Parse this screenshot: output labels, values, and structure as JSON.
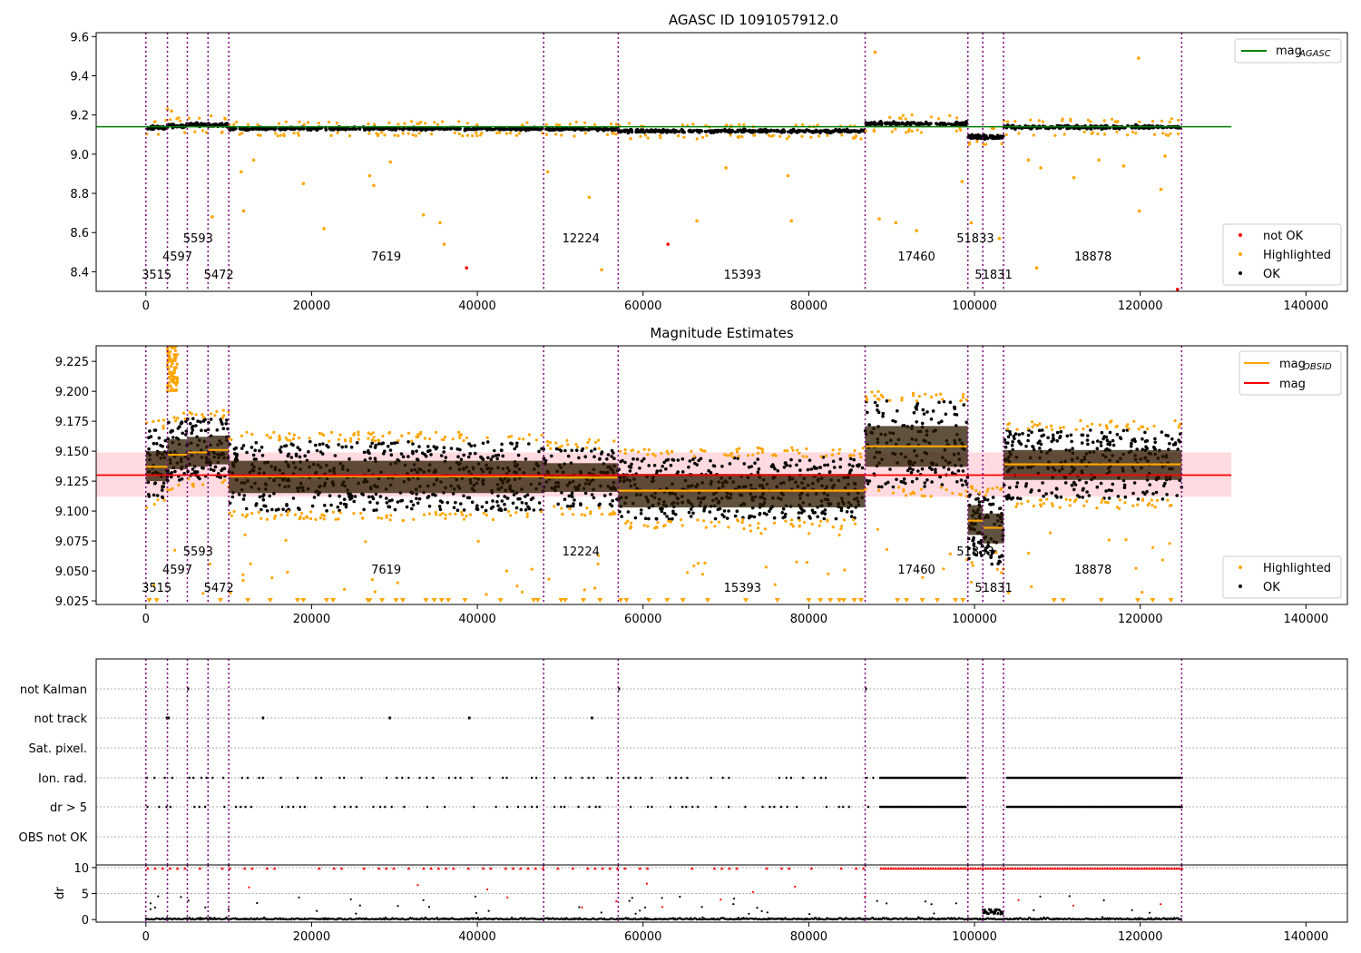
{
  "chart_data": [
    {
      "type": "scatter",
      "title": "AGASC ID 1091057912.0",
      "xlim": [
        -6000,
        145000
      ],
      "ylim": [
        8.3,
        9.62
      ],
      "xticks": [
        0,
        20000,
        40000,
        60000,
        80000,
        100000,
        120000,
        140000
      ],
      "yticks": [
        8.4,
        8.6,
        8.8,
        9.0,
        9.2,
        9.4,
        9.6
      ],
      "ytick_labels": [
        "8.4",
        "8.6",
        "8.8",
        "9.0",
        "9.2",
        "9.4",
        "9.6"
      ],
      "mag_agasc": 9.14,
      "mag_agasc_range": [
        -6000,
        131000
      ],
      "legend_top": {
        "label": "mag",
        "sub": "AGASC",
        "color": "#008000"
      },
      "legend_bottom": [
        {
          "label": "not OK",
          "color": "#ff0000"
        },
        {
          "label": "Highlighted",
          "color": "#ffa500"
        },
        {
          "label": "OK",
          "color": "#000000"
        }
      ],
      "segments": [
        {
          "x0": 0,
          "x1": 2600,
          "mean": 9.135,
          "spread": 0.015
        },
        {
          "x0": 2600,
          "x1": 5000,
          "mean": 9.145,
          "spread": 0.015
        },
        {
          "x0": 5000,
          "x1": 7500,
          "mean": 9.15,
          "spread": 0.015
        },
        {
          "x0": 7500,
          "x1": 10000,
          "mean": 9.15,
          "spread": 0.015
        },
        {
          "x0": 10000,
          "x1": 48000,
          "mean": 9.13,
          "spread": 0.012
        },
        {
          "x0": 48000,
          "x1": 57000,
          "mean": 9.128,
          "spread": 0.012
        },
        {
          "x0": 57000,
          "x1": 86800,
          "mean": 9.118,
          "spread": 0.013
        },
        {
          "x0": 86800,
          "x1": 99200,
          "mean": 9.155,
          "spread": 0.015
        },
        {
          "x0": 99200,
          "x1": 101000,
          "mean": 9.09,
          "spread": 0.015
        },
        {
          "x0": 101000,
          "x1": 103500,
          "mean": 9.086,
          "spread": 0.015
        },
        {
          "x0": 103500,
          "x1": 125000,
          "mean": 9.138,
          "spread": 0.014
        }
      ],
      "outliers_not_ok": [
        {
          "x": 38700,
          "y": 8.42
        },
        {
          "x": 63000,
          "y": 8.54
        },
        {
          "x": 124500,
          "y": 8.31
        }
      ],
      "outliers_highlighted": [
        {
          "x": 2600,
          "y": 9.23
        },
        {
          "x": 3100,
          "y": 9.22
        },
        {
          "x": 8000,
          "y": 8.68
        },
        {
          "x": 11500,
          "y": 8.91
        },
        {
          "x": 11800,
          "y": 8.71
        },
        {
          "x": 13000,
          "y": 8.97
        },
        {
          "x": 19000,
          "y": 8.85
        },
        {
          "x": 21500,
          "y": 8.62
        },
        {
          "x": 27000,
          "y": 8.89
        },
        {
          "x": 27500,
          "y": 8.84
        },
        {
          "x": 29500,
          "y": 8.96
        },
        {
          "x": 33500,
          "y": 8.69
        },
        {
          "x": 35500,
          "y": 8.65
        },
        {
          "x": 36000,
          "y": 8.54
        },
        {
          "x": 48500,
          "y": 8.91
        },
        {
          "x": 53500,
          "y": 8.78
        },
        {
          "x": 55000,
          "y": 8.41
        },
        {
          "x": 66500,
          "y": 8.66
        },
        {
          "x": 70000,
          "y": 8.93
        },
        {
          "x": 77500,
          "y": 8.89
        },
        {
          "x": 77900,
          "y": 8.66
        },
        {
          "x": 88000,
          "y": 9.52
        },
        {
          "x": 88500,
          "y": 8.67
        },
        {
          "x": 90500,
          "y": 8.65
        },
        {
          "x": 93000,
          "y": 8.61
        },
        {
          "x": 98500,
          "y": 8.86
        },
        {
          "x": 99600,
          "y": 8.65
        },
        {
          "x": 103000,
          "y": 8.57
        },
        {
          "x": 106500,
          "y": 8.97
        },
        {
          "x": 107500,
          "y": 8.42
        },
        {
          "x": 108000,
          "y": 8.93
        },
        {
          "x": 112000,
          "y": 8.88
        },
        {
          "x": 115000,
          "y": 8.97
        },
        {
          "x": 118000,
          "y": 8.94
        },
        {
          "x": 119800,
          "y": 9.49
        },
        {
          "x": 119900,
          "y": 8.71
        },
        {
          "x": 122500,
          "y": 8.82
        },
        {
          "x": 123000,
          "y": 8.99
        }
      ]
    },
    {
      "type": "scatter",
      "title": "Magnitude Estimates",
      "xlim": [
        -6000,
        145000
      ],
      "ylim": [
        9.022,
        9.238
      ],
      "xticks": [
        0,
        20000,
        40000,
        60000,
        80000,
        100000,
        120000,
        140000
      ],
      "yticks": [
        9.025,
        9.05,
        9.075,
        9.1,
        9.125,
        9.15,
        9.175,
        9.2,
        9.225
      ],
      "ytick_labels": [
        "9.025",
        "9.050",
        "9.075",
        "9.100",
        "9.125",
        "9.150",
        "9.175",
        "9.200",
        "9.225"
      ],
      "mag": 9.13,
      "mag_band": [
        9.112,
        9.149
      ],
      "mag_range": [
        -6000,
        131000
      ],
      "legend_top": [
        {
          "label": "mag",
          "sub": "OBSID",
          "color": "#ffa500"
        },
        {
          "label": "mag",
          "sub": "",
          "color": "#ff0000"
        }
      ],
      "legend_bottom": [
        {
          "label": "Highlighted",
          "color": "#ffa500"
        },
        {
          "label": "OK",
          "color": "#000000"
        }
      ],
      "obsid_segments": [
        {
          "x0": 0,
          "x1": 2600,
          "mag": 9.137,
          "lo": 9.125,
          "hi": 9.15,
          "plo": 9.11,
          "phi": 9.168
        },
        {
          "x0": 2600,
          "x1": 5000,
          "mag": 9.147,
          "lo": 9.135,
          "hi": 9.16,
          "plo": 9.125,
          "phi": 9.175
        },
        {
          "x0": 5000,
          "x1": 7500,
          "mag": 9.149,
          "lo": 9.137,
          "hi": 9.162,
          "plo": 9.127,
          "phi": 9.178
        },
        {
          "x0": 7500,
          "x1": 10000,
          "mag": 9.151,
          "lo": 9.139,
          "hi": 9.163,
          "plo": 9.128,
          "phi": 9.177
        },
        {
          "x0": 10000,
          "x1": 48000,
          "mag": 9.129,
          "lo": 9.115,
          "hi": 9.142,
          "plo": 9.1,
          "phi": 9.158
        },
        {
          "x0": 48000,
          "x1": 57000,
          "mag": 9.128,
          "lo": 9.116,
          "hi": 9.14,
          "plo": 9.104,
          "phi": 9.152
        },
        {
          "x0": 57000,
          "x1": 86800,
          "mag": 9.117,
          "lo": 9.103,
          "hi": 9.131,
          "plo": 9.093,
          "phi": 9.145
        },
        {
          "x0": 86800,
          "x1": 99200,
          "mag": 9.154,
          "lo": 9.137,
          "hi": 9.171,
          "plo": 9.12,
          "phi": 9.192
        },
        {
          "x0": 99200,
          "x1": 101000,
          "mag": 9.092,
          "lo": 9.08,
          "hi": 9.105,
          "plo": 9.06,
          "phi": 9.115
        },
        {
          "x0": 101000,
          "x1": 103500,
          "mag": 9.086,
          "lo": 9.073,
          "hi": 9.098,
          "plo": 9.055,
          "phi": 9.112
        },
        {
          "x0": 103500,
          "x1": 125000,
          "mag": 9.139,
          "lo": 9.126,
          "hi": 9.151,
          "plo": 9.11,
          "phi": 9.168
        }
      ],
      "highlighted_cluster": {
        "x0": 2500,
        "x1": 3800,
        "y0": 9.2,
        "y1": 9.238
      },
      "lower_clip_markers": [
        400,
        1300,
        9000,
        12300,
        15000,
        18300,
        19000,
        21800,
        22600,
        26800,
        27000,
        28500,
        30200,
        31000,
        33800,
        34800,
        35700,
        36500,
        38500,
        42800,
        46800,
        47300,
        50100,
        50600,
        52800,
        54800,
        57300,
        58000,
        60700,
        62900,
        64800,
        67800,
        72400,
        76200,
        80000,
        81400,
        82600,
        83700,
        84200,
        85500,
        86300,
        90700,
        91800,
        93700,
        95500,
        97700,
        98600,
        109600,
        110700,
        115300,
        119700,
        121500,
        123700
      ]
    },
    {
      "type": "scatter",
      "xlim": [
        -6000,
        145000
      ],
      "xticks": [
        0,
        20000,
        40000,
        60000,
        80000,
        100000,
        120000,
        140000
      ],
      "flag_rows": [
        "not Kalman",
        "not track",
        "Sat. pixel.",
        "Ion. rad.",
        "dr > 5",
        "OBS not OK"
      ],
      "dr_ylim": [
        -0.5,
        10.5
      ],
      "dr_yticks": [
        0,
        5,
        10
      ],
      "ylabel": "dr",
      "dr_clip": 9.8,
      "not_track_points": [
        2400,
        2600,
        14000,
        29300,
        38900,
        53700
      ],
      "not_kalman_points": [
        5000,
        57000,
        86800
      ],
      "flag_dense_ranges": [
        [
          88500,
          99000
        ],
        [
          103800,
          125000
        ]
      ],
      "flag_sparse_range": [
        0,
        88000
      ]
    }
  ],
  "obsid_labels": [
    {
      "text": "3515",
      "x": 1300,
      "row": 0
    },
    {
      "text": "4597",
      "x": 3800,
      "row": 1
    },
    {
      "text": "5593",
      "x": 6300,
      "row": 2
    },
    {
      "text": "5472",
      "x": 8800,
      "row": 0
    },
    {
      "text": "7619",
      "x": 29000,
      "row": 1
    },
    {
      "text": "12224",
      "x": 52500,
      "row": 2
    },
    {
      "text": "15393",
      "x": 72000,
      "row": 0
    },
    {
      "text": "17460",
      "x": 93000,
      "row": 1
    },
    {
      "text": "51833",
      "x": 100100,
      "row": 2
    },
    {
      "text": "51831",
      "x": 102300,
      "row": 0
    },
    {
      "text": "18878",
      "x": 114300,
      "row": 1
    }
  ],
  "obsid_boundaries": [
    0,
    2600,
    5000,
    7500,
    10000,
    48000,
    57000,
    86800,
    99200,
    101000,
    103500,
    125000
  ],
  "colors": {
    "ok": "#000000",
    "highlighted": "#ffa500",
    "not_ok": "#ff0000",
    "agasc_line": "#008000",
    "mag_line": "#ff0000",
    "mag_band": "#ffb6c1",
    "obsid_line": "#ffa500",
    "boundary": "#800080"
  }
}
